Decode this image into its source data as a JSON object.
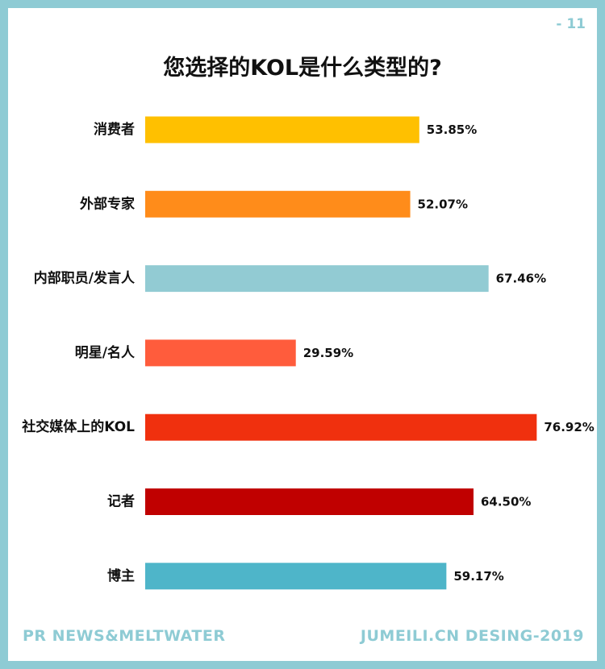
{
  "page_number": "- 11",
  "footer": {
    "left": "PR NEWS&MELTWATER",
    "right": "JUMEILI.CN DESING-2019"
  },
  "chart_data": {
    "type": "bar",
    "orientation": "horizontal",
    "title": "您选择的KOL是什么类型的?",
    "categories": [
      "消费者",
      "外部专家",
      "内部职员/发言人",
      "明星/名人",
      "社交媒体上的KOL",
      "记者",
      "博主"
    ],
    "values": [
      53.85,
      52.07,
      67.46,
      29.59,
      76.92,
      64.5,
      59.17
    ],
    "data_labels": [
      "53.85%",
      "52.07%",
      "67.46%",
      "29.59%",
      "76.92%",
      "64.50%",
      "59.17%"
    ],
    "colors": [
      "#ffc000",
      "#ff8c1a",
      "#92cbd3",
      "#ff5c3c",
      "#f0300e",
      "#c00000",
      "#4eb5c9"
    ],
    "xlim": [
      0,
      100
    ],
    "grid": false,
    "legend": "none"
  }
}
